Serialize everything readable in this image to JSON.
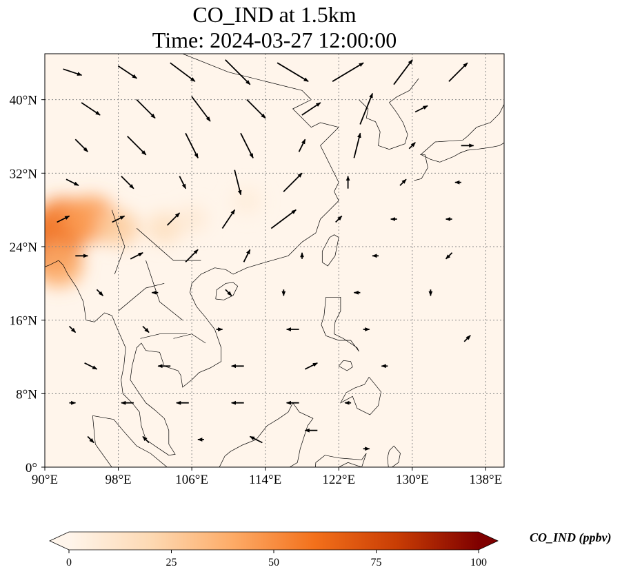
{
  "title": {
    "line1": "CO_IND at 1.5km",
    "line2": "Time: 2024-03-27 12:00:00"
  },
  "map": {
    "extent": {
      "lon": [
        90,
        140
      ],
      "lat": [
        0,
        45
      ]
    },
    "x_ticks": [
      {
        "value": 90,
        "label": "90°E"
      },
      {
        "value": 98,
        "label": "98°E"
      },
      {
        "value": 106,
        "label": "106°E"
      },
      {
        "value": 114,
        "label": "114°E"
      },
      {
        "value": 122,
        "label": "122°E"
      },
      {
        "value": 130,
        "label": "130°E"
      },
      {
        "value": 138,
        "label": "138°E"
      }
    ],
    "y_ticks": [
      {
        "value": 0,
        "label": "0°"
      },
      {
        "value": 8,
        "label": "8°N"
      },
      {
        "value": 16,
        "label": "16°N"
      },
      {
        "value": 24,
        "label": "24°N"
      },
      {
        "value": 32,
        "label": "32°N"
      },
      {
        "value": 40,
        "label": "40°N"
      }
    ],
    "gridlines": true,
    "colormap": [
      "#fff5eb",
      "#fdd9b3",
      "#fdab67",
      "#f3701b",
      "#c93d04",
      "#7f0000"
    ],
    "field_max": 100,
    "concentration_hotspots": [
      {
        "lon": 90.5,
        "lat": 24.5,
        "value": 70
      },
      {
        "lon": 92,
        "lat": 26.5,
        "value": 55
      },
      {
        "lon": 95,
        "lat": 27,
        "value": 45
      },
      {
        "lon": 91.5,
        "lat": 22,
        "value": 40
      },
      {
        "lon": 98,
        "lat": 26,
        "value": 25
      },
      {
        "lon": 103,
        "lat": 26,
        "value": 15
      },
      {
        "lon": 106,
        "lat": 27,
        "value": 8
      },
      {
        "lon": 112,
        "lat": 29,
        "value": 6
      }
    ],
    "wind_vectors": [
      {
        "lon": 93,
        "lat": 43,
        "u": 3,
        "v": -1
      },
      {
        "lon": 99,
        "lat": 43,
        "u": 3,
        "v": -2
      },
      {
        "lon": 105,
        "lat": 43,
        "u": 4,
        "v": -3
      },
      {
        "lon": 111,
        "lat": 43,
        "u": 4,
        "v": -4
      },
      {
        "lon": 117,
        "lat": 43,
        "u": 5,
        "v": -3
      },
      {
        "lon": 123,
        "lat": 43,
        "u": 5,
        "v": 3
      },
      {
        "lon": 129,
        "lat": 43,
        "u": 3,
        "v": 4
      },
      {
        "lon": 135,
        "lat": 43,
        "u": 3,
        "v": 3
      },
      {
        "lon": 95,
        "lat": 39,
        "u": 3,
        "v": -2
      },
      {
        "lon": 101,
        "lat": 39,
        "u": 3,
        "v": -3
      },
      {
        "lon": 107,
        "lat": 39,
        "u": 3,
        "v": -4
      },
      {
        "lon": 113,
        "lat": 39,
        "u": 3,
        "v": -3
      },
      {
        "lon": 119,
        "lat": 39,
        "u": 3,
        "v": 2
      },
      {
        "lon": 125,
        "lat": 39,
        "u": 2,
        "v": 5
      },
      {
        "lon": 131,
        "lat": 39,
        "u": 2,
        "v": 1
      },
      {
        "lon": 94,
        "lat": 35,
        "u": 2,
        "v": -2
      },
      {
        "lon": 100,
        "lat": 35,
        "u": 3,
        "v": -3
      },
      {
        "lon": 106,
        "lat": 35,
        "u": 2,
        "v": -4
      },
      {
        "lon": 112,
        "lat": 35,
        "u": 2,
        "v": -4
      },
      {
        "lon": 118,
        "lat": 35,
        "u": 1,
        "v": 2
      },
      {
        "lon": 124,
        "lat": 35,
        "u": 1,
        "v": 4
      },
      {
        "lon": 130,
        "lat": 35,
        "u": 1,
        "v": 1
      },
      {
        "lon": 136,
        "lat": 35,
        "u": 2,
        "v": 0
      },
      {
        "lon": 93,
        "lat": 31,
        "u": 2,
        "v": -1
      },
      {
        "lon": 99,
        "lat": 31,
        "u": 2,
        "v": -2
      },
      {
        "lon": 105,
        "lat": 31,
        "u": 1,
        "v": -2
      },
      {
        "lon": 111,
        "lat": 31,
        "u": 1,
        "v": -4
      },
      {
        "lon": 117,
        "lat": 31,
        "u": 3,
        "v": 3
      },
      {
        "lon": 123,
        "lat": 31,
        "u": 0,
        "v": 2
      },
      {
        "lon": 129,
        "lat": 31,
        "u": 1,
        "v": 1
      },
      {
        "lon": 135,
        "lat": 31,
        "u": -1,
        "v": 0
      },
      {
        "lon": 92,
        "lat": 27,
        "u": 2,
        "v": 1
      },
      {
        "lon": 98,
        "lat": 27,
        "u": 2,
        "v": 1
      },
      {
        "lon": 104,
        "lat": 27,
        "u": 2,
        "v": 2
      },
      {
        "lon": 110,
        "lat": 27,
        "u": 2,
        "v": 3
      },
      {
        "lon": 116,
        "lat": 27,
        "u": 4,
        "v": 3
      },
      {
        "lon": 122,
        "lat": 27,
        "u": 1,
        "v": 1
      },
      {
        "lon": 128,
        "lat": 27,
        "u": -1,
        "v": 0
      },
      {
        "lon": 134,
        "lat": 27,
        "u": -1,
        "v": 0
      },
      {
        "lon": 94,
        "lat": 23,
        "u": 2,
        "v": 0
      },
      {
        "lon": 100,
        "lat": 23,
        "u": 2,
        "v": 1
      },
      {
        "lon": 106,
        "lat": 23,
        "u": 2,
        "v": 2
      },
      {
        "lon": 112,
        "lat": 23,
        "u": 1,
        "v": 2
      },
      {
        "lon": 118,
        "lat": 23,
        "u": 0,
        "v": 1
      },
      {
        "lon": 126,
        "lat": 23,
        "u": -1,
        "v": 0
      },
      {
        "lon": 134,
        "lat": 23,
        "u": -1,
        "v": -1
      },
      {
        "lon": 96,
        "lat": 19,
        "u": 1,
        "v": -1
      },
      {
        "lon": 102,
        "lat": 19,
        "u": -1,
        "v": 0
      },
      {
        "lon": 110,
        "lat": 19,
        "u": 1,
        "v": -1
      },
      {
        "lon": 116,
        "lat": 19,
        "u": 0,
        "v": -1
      },
      {
        "lon": 124,
        "lat": 19,
        "u": -1,
        "v": 0
      },
      {
        "lon": 132,
        "lat": 19,
        "u": 0,
        "v": -1
      },
      {
        "lon": 93,
        "lat": 15,
        "u": 1,
        "v": -1
      },
      {
        "lon": 101,
        "lat": 15,
        "u": 1,
        "v": -1
      },
      {
        "lon": 109,
        "lat": 15,
        "u": 1,
        "v": 0
      },
      {
        "lon": 117,
        "lat": 15,
        "u": -2,
        "v": 0
      },
      {
        "lon": 125,
        "lat": 15,
        "u": 1,
        "v": 0
      },
      {
        "lon": 136,
        "lat": 14,
        "u": 1,
        "v": 1
      },
      {
        "lon": 95,
        "lat": 11,
        "u": 2,
        "v": -1
      },
      {
        "lon": 103,
        "lat": 11,
        "u": -2,
        "v": 0
      },
      {
        "lon": 111,
        "lat": 11,
        "u": -2,
        "v": 0
      },
      {
        "lon": 119,
        "lat": 11,
        "u": 2,
        "v": 1
      },
      {
        "lon": 127,
        "lat": 11,
        "u": -1,
        "v": 0
      },
      {
        "lon": 93,
        "lat": 7,
        "u": 1,
        "v": 0
      },
      {
        "lon": 99,
        "lat": 7,
        "u": -2,
        "v": 0
      },
      {
        "lon": 105,
        "lat": 7,
        "u": -2,
        "v": 0
      },
      {
        "lon": 111,
        "lat": 7,
        "u": -2,
        "v": 0
      },
      {
        "lon": 117,
        "lat": 7,
        "u": -2,
        "v": 0
      },
      {
        "lon": 123,
        "lat": 7,
        "u": -1,
        "v": 0
      },
      {
        "lon": 95,
        "lat": 3,
        "u": 1,
        "v": -1
      },
      {
        "lon": 101,
        "lat": 3,
        "u": -1,
        "v": 1
      },
      {
        "lon": 107,
        "lat": 3,
        "u": -1,
        "v": 0
      },
      {
        "lon": 113,
        "lat": 3,
        "u": -2,
        "v": 1
      },
      {
        "lon": 119,
        "lat": 4,
        "u": -2,
        "v": 0
      },
      {
        "lon": 125,
        "lat": 2,
        "u": 1,
        "v": 0
      }
    ]
  },
  "colorbar": {
    "min": 0,
    "max": 100,
    "extend": "both",
    "ticks": [
      {
        "value": 0,
        "label": "0"
      },
      {
        "value": 25,
        "label": "25"
      },
      {
        "value": 50,
        "label": "50"
      },
      {
        "value": 75,
        "label": "75"
      },
      {
        "value": 100,
        "label": "100"
      }
    ],
    "label": "CO_IND (ppbv)"
  }
}
